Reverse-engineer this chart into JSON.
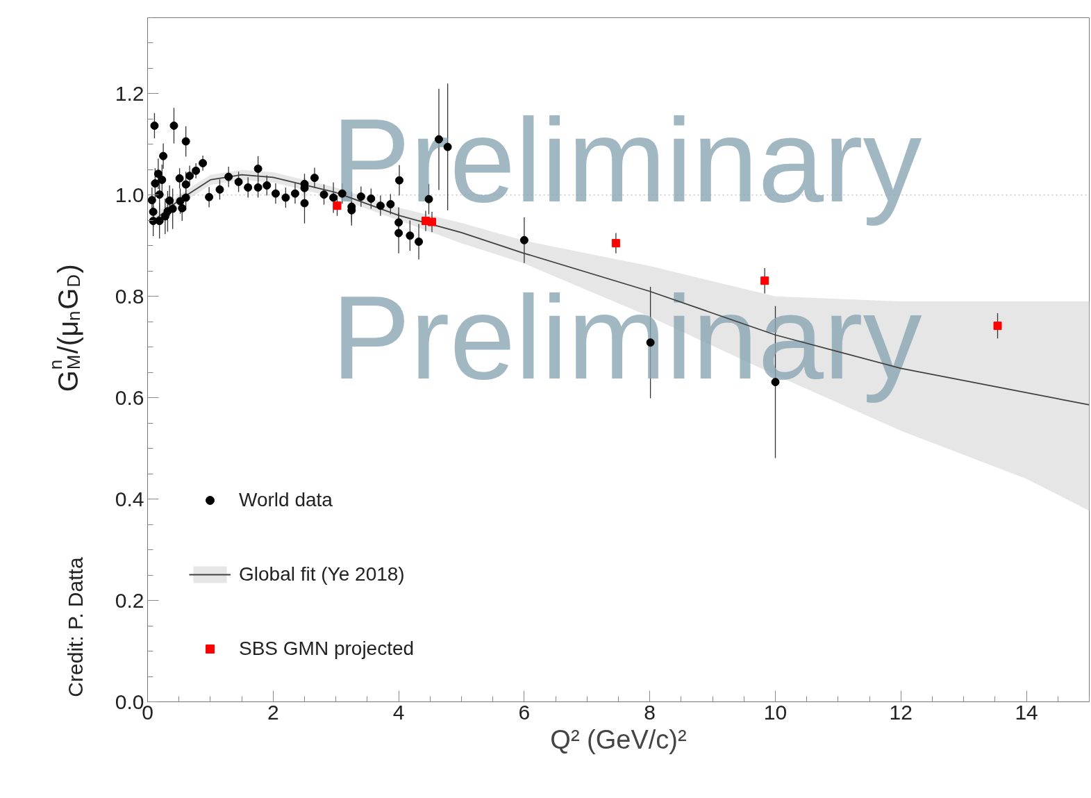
{
  "chart_data": {
    "type": "scatter",
    "xlabel": "Q² (GeV/c)²",
    "ylabel": "G$^{n}$$_{M}$/(μ$_{n}$G$_{D}$)",
    "xlim": [
      0,
      15
    ],
    "ylim": [
      0,
      1.35
    ],
    "xticks": [
      0,
      2,
      4,
      6,
      8,
      10,
      12,
      14
    ],
    "yticks": [
      {
        "value": 0,
        "label": "0.0"
      },
      {
        "value": 0.2,
        "label": "0.2"
      },
      {
        "value": 0.4,
        "label": "0.4"
      },
      {
        "value": 0.6,
        "label": "0.6"
      },
      {
        "value": 0.8,
        "label": "0.8"
      },
      {
        "value": 1.0,
        "label": "1.0"
      },
      {
        "value": 1.2,
        "label": "1.2"
      }
    ],
    "grid": false,
    "legend": "bottom left",
    "ref_lines": [
      {
        "axis": "y",
        "value": 1.0,
        "color": "#c8c8c8",
        "line_style": "dotted"
      }
    ],
    "annotations": [
      "Preliminary",
      "Preliminary",
      "Credit: P. Datta"
    ],
    "series": [
      {
        "name": "World data",
        "type": "scatter",
        "marker": "circle",
        "color": "#000000",
        "x": [
          0.11,
          0.42,
          0.61,
          0.25,
          0.88,
          0.77,
          0.67,
          0.51,
          0.17,
          0.23,
          0.12,
          0.61,
          1.15,
          0.98,
          1.29,
          1.45,
          1.76,
          1.6,
          1.76,
          1.9,
          2.04,
          2.2,
          2.35,
          2.5,
          2.5,
          2.5,
          2.66,
          2.81,
          2.96,
          3.1,
          3.25,
          3.25,
          3.4,
          3.56,
          3.71,
          3.87,
          4.01,
          4.0,
          4.0,
          4.18,
          4.32,
          4.48,
          4.64,
          4.78,
          6.0,
          8.01,
          10.0,
          0.07,
          0.09,
          0.09,
          0.19,
          0.28,
          0.32,
          0.35,
          0.4,
          0.52,
          0.55,
          0.61,
          0.19
        ],
        "values": [
          1.137,
          1.137,
          1.106,
          1.077,
          1.063,
          1.048,
          1.038,
          1.033,
          1.042,
          1.03,
          1.023,
          1.021,
          1.011,
          0.996,
          1.036,
          1.026,
          1.052,
          1.015,
          1.015,
          1.019,
          1.003,
          0.995,
          1.003,
          1.022,
          1.014,
          0.984,
          1.034,
          1.001,
          0.995,
          1.003,
          0.977,
          0.97,
          0.997,
          0.993,
          0.979,
          0.982,
          1.029,
          0.946,
          0.925,
          0.92,
          0.908,
          0.992,
          1.11,
          1.095,
          0.911,
          0.709,
          0.631,
          0.99,
          0.967,
          0.949,
          0.949,
          0.958,
          0.968,
          0.989,
          0.973,
          0.988,
          0.974,
          0.995,
          1.001
        ],
        "errors": [
          0.025,
          0.035,
          0.03,
          0.025,
          0.015,
          0.015,
          0.02,
          0.02,
          0.03,
          0.03,
          0.03,
          0.025,
          0.02,
          0.02,
          0.02,
          0.02,
          0.025,
          0.02,
          0.02,
          0.02,
          0.02,
          0.02,
          0.02,
          0.02,
          0.02,
          0.04,
          0.02,
          0.02,
          0.03,
          0.02,
          0.03,
          0.03,
          0.02,
          0.02,
          0.02,
          0.02,
          0.03,
          0.03,
          0.04,
          0.03,
          0.035,
          0.03,
          0.1,
          0.125,
          0.045,
          0.11,
          0.15,
          0.025,
          0.03,
          0.03,
          0.035,
          0.035,
          0.04,
          0.03,
          0.04,
          0.025,
          0.025,
          0.025,
          0.03
        ]
      },
      {
        "name": "Global fit (Ye 2018)",
        "type": "line",
        "color": "#404040",
        "line_style": "solid",
        "x": [
          0.1,
          0.5,
          1.0,
          1.5,
          2.0,
          3.0,
          4.0,
          5.0,
          6.0,
          8.0,
          10.0,
          12.0,
          14.0,
          15.0
        ],
        "values": [
          0.95,
          0.99,
          1.03,
          1.04,
          1.035,
          1.005,
          0.96,
          0.926,
          0.885,
          0.81,
          0.724,
          0.658,
          0.61,
          0.586
        ],
        "lower": [
          0.94,
          0.98,
          1.02,
          1.03,
          1.025,
          0.995,
          0.95,
          0.905,
          0.865,
          0.76,
          0.645,
          0.535,
          0.44,
          0.377
        ],
        "upper": [
          0.96,
          1.0,
          1.04,
          1.05,
          1.045,
          1.015,
          0.975,
          0.945,
          0.91,
          0.86,
          0.8,
          0.79,
          0.79,
          0.79
        ]
      },
      {
        "name": "SBS GMN projected",
        "type": "scatter",
        "marker": "square",
        "color": "#ff0000",
        "x": [
          3.02,
          4.43,
          4.53,
          7.46,
          9.83,
          13.54
        ],
        "values": [
          0.979,
          0.949,
          0.947,
          0.905,
          0.831,
          0.742
        ],
        "errors": [
          0.02,
          0.02,
          0.02,
          0.02,
          0.025,
          0.025
        ]
      }
    ]
  }
}
